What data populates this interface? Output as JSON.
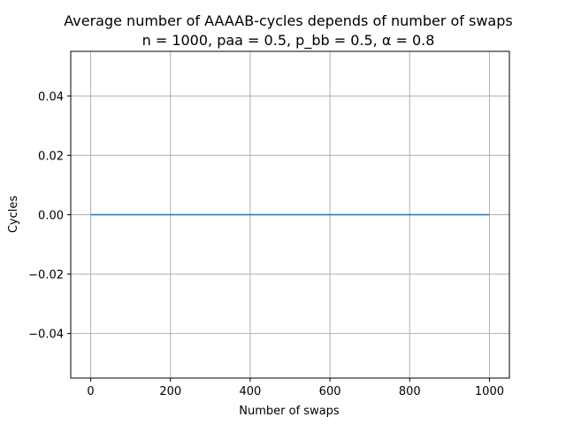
{
  "chart_data": {
    "type": "line",
    "title": "Average number of AAAAB-cycles depends of number of swaps",
    "subtitle": "n = 1000, paa = 0.5, p_bb = 0.5, α = 0.8",
    "xlabel": "Number of swaps",
    "ylabel": "Cycles",
    "xlim": [
      -50,
      1050
    ],
    "ylim": [
      -0.055,
      0.055
    ],
    "xticks": [
      0,
      200,
      400,
      600,
      800,
      1000
    ],
    "xtick_labels": [
      "0",
      "200",
      "400",
      "600",
      "800",
      "1000"
    ],
    "yticks": [
      -0.04,
      -0.02,
      0.0,
      0.02,
      0.04
    ],
    "ytick_labels": [
      "−0.04",
      "−0.02",
      "0.00",
      "0.02",
      "0.04"
    ],
    "grid": true,
    "series": [
      {
        "color": "#1f77b4",
        "x": [
          0,
          1000
        ],
        "y": [
          0,
          0
        ]
      }
    ]
  }
}
